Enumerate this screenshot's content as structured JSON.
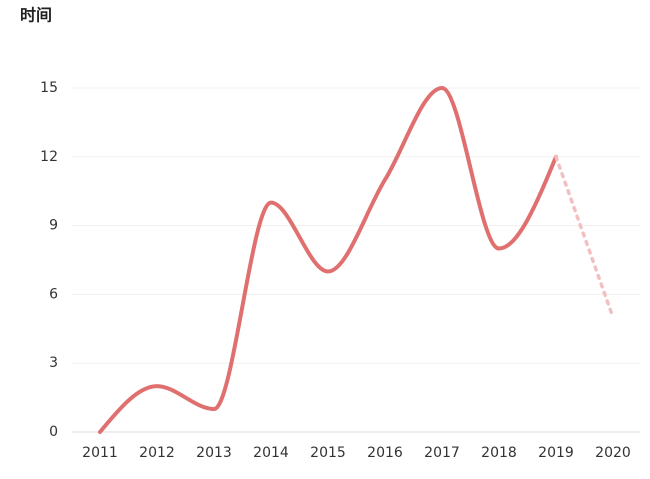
{
  "chart_data": {
    "type": "line",
    "title": "时间",
    "categories": [
      "2011",
      "2012",
      "2013",
      "2014",
      "2015",
      "2016",
      "2017",
      "2018",
      "2019",
      "2020"
    ],
    "series": [
      {
        "color": "#e07070",
        "values": [
          0,
          2,
          1,
          10,
          7,
          11,
          15,
          8,
          12,
          null
        ]
      },
      {
        "color": "#f2c0c0",
        "dashed": true,
        "values": [
          null,
          null,
          null,
          null,
          null,
          null,
          null,
          null,
          12,
          5
        ]
      }
    ],
    "ylim": [
      0,
      15
    ],
    "yticks": [
      0,
      3,
      6,
      9,
      12,
      15
    ],
    "grid": true
  }
}
